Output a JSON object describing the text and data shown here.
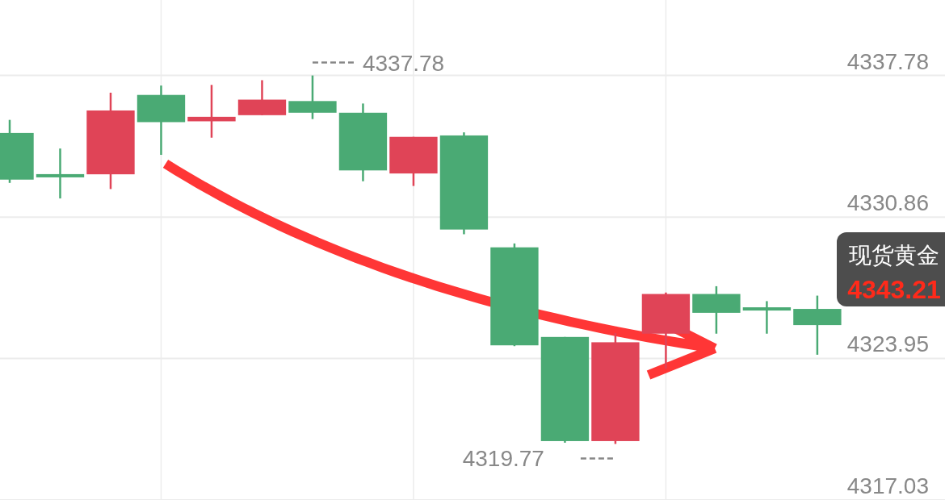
{
  "chart_data": {
    "type": "candlestick",
    "categories": [
      null,
      null,
      null,
      null,
      null,
      null,
      null,
      null,
      null,
      null,
      null,
      null,
      null,
      null,
      null,
      null,
      null
    ],
    "ohlc": [
      [
        4334.97,
        4335.61,
        4332.53,
        4332.69
      ],
      [
        4332.88,
        4334.21,
        4331.77,
        4332.88
      ],
      [
        4332.95,
        4336.94,
        4332.23,
        4336.07
      ],
      [
        4336.83,
        4337.29,
        4333.9,
        4335.5
      ],
      [
        4335.54,
        4337.32,
        4334.74,
        4335.76
      ],
      [
        4335.84,
        4337.55,
        4335.84,
        4336.6
      ],
      [
        4336.53,
        4337.78,
        4335.65,
        4335.96
      ],
      [
        4335.96,
        4336.41,
        4332.61,
        4333.14
      ],
      [
        4332.99,
        4334.78,
        4332.38,
        4334.78
      ],
      [
        4334.85,
        4335.0,
        4330.02,
        4330.25
      ],
      [
        4329.38,
        4329.57,
        4324.55,
        4324.59
      ],
      [
        4325.0,
        4325.0,
        4319.83,
        4319.91
      ],
      [
        4319.91,
        4325.19,
        4319.77,
        4324.74
      ],
      [
        4325.16,
        4327.17,
        4323.45,
        4327.1
      ],
      [
        4327.1,
        4327.48,
        4325.16,
        4326.18
      ],
      [
        4326.37,
        4326.75,
        4325.16,
        4326.37
      ],
      [
        4326.37,
        4327.02,
        4324.13,
        4325.58
      ]
    ],
    "colors": [
      "#4aaa74",
      "#4aaa74",
      "#e04457",
      "#4aaa74",
      "#e04457",
      "#e04457",
      "#4aaa74",
      "#4aaa74",
      "#e04457",
      "#4aaa74",
      "#4aaa74",
      "#4aaa74",
      "#e04457",
      "#e04457",
      "#4aaa74",
      "#4aaa74",
      "#4aaa74"
    ],
    "ylim": [
      4317.03,
      4341.47
    ],
    "yticks": [
      4337.78,
      4330.86,
      4323.95,
      4317.03
    ],
    "grid": true,
    "annotations": [
      "4337.78",
      "4319.77",
      "现货黄金",
      "4343.21"
    ]
  }
}
